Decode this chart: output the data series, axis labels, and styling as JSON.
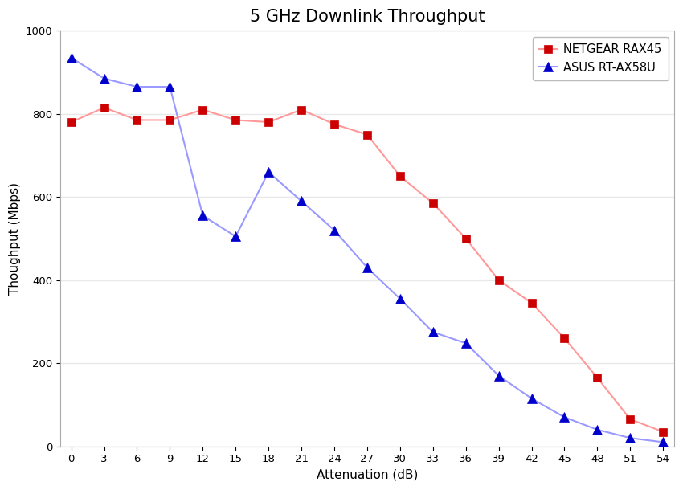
{
  "title": "5 GHz Downlink Throughput",
  "xlabel": "Attenuation (dB)",
  "ylabel": "Thoughput (Mbps)",
  "xlim": [
    -1,
    55
  ],
  "ylim": [
    0,
    1000
  ],
  "xticks": [
    0,
    3,
    6,
    9,
    12,
    15,
    18,
    21,
    24,
    27,
    30,
    33,
    36,
    39,
    42,
    45,
    48,
    51,
    54
  ],
  "yticks": [
    0,
    200,
    400,
    600,
    800,
    1000
  ],
  "netgear_x": [
    0,
    3,
    6,
    9,
    12,
    15,
    18,
    21,
    24,
    27,
    30,
    33,
    36,
    39,
    42,
    45,
    48,
    51,
    54
  ],
  "netgear_y": [
    780,
    815,
    785,
    785,
    810,
    785,
    780,
    810,
    775,
    750,
    650,
    585,
    500,
    400,
    345,
    260,
    165,
    65,
    35
  ],
  "asus_x": [
    0,
    3,
    6,
    9,
    12,
    15,
    18,
    21,
    24,
    27,
    30,
    33,
    36,
    39,
    42,
    45,
    48,
    51,
    54
  ],
  "asus_y": [
    935,
    885,
    865,
    865,
    555,
    505,
    660,
    590,
    520,
    430,
    355,
    275,
    248,
    170,
    115,
    70,
    40,
    20,
    10
  ],
  "netgear_color": "#cc0000",
  "netgear_line_color": "#ff9999",
  "asus_color": "#0000cc",
  "asus_line_color": "#9999ff",
  "legend_netgear": "NETGEAR RAX45",
  "legend_asus": "ASUS RT-AX58U",
  "bg_color": "#ffffff",
  "plot_bg_color": "#ffffff",
  "grid_color": "#e8e8e8",
  "title_fontsize": 15,
  "axis_fontsize": 11,
  "tick_fontsize": 9.5,
  "legend_fontsize": 10.5
}
